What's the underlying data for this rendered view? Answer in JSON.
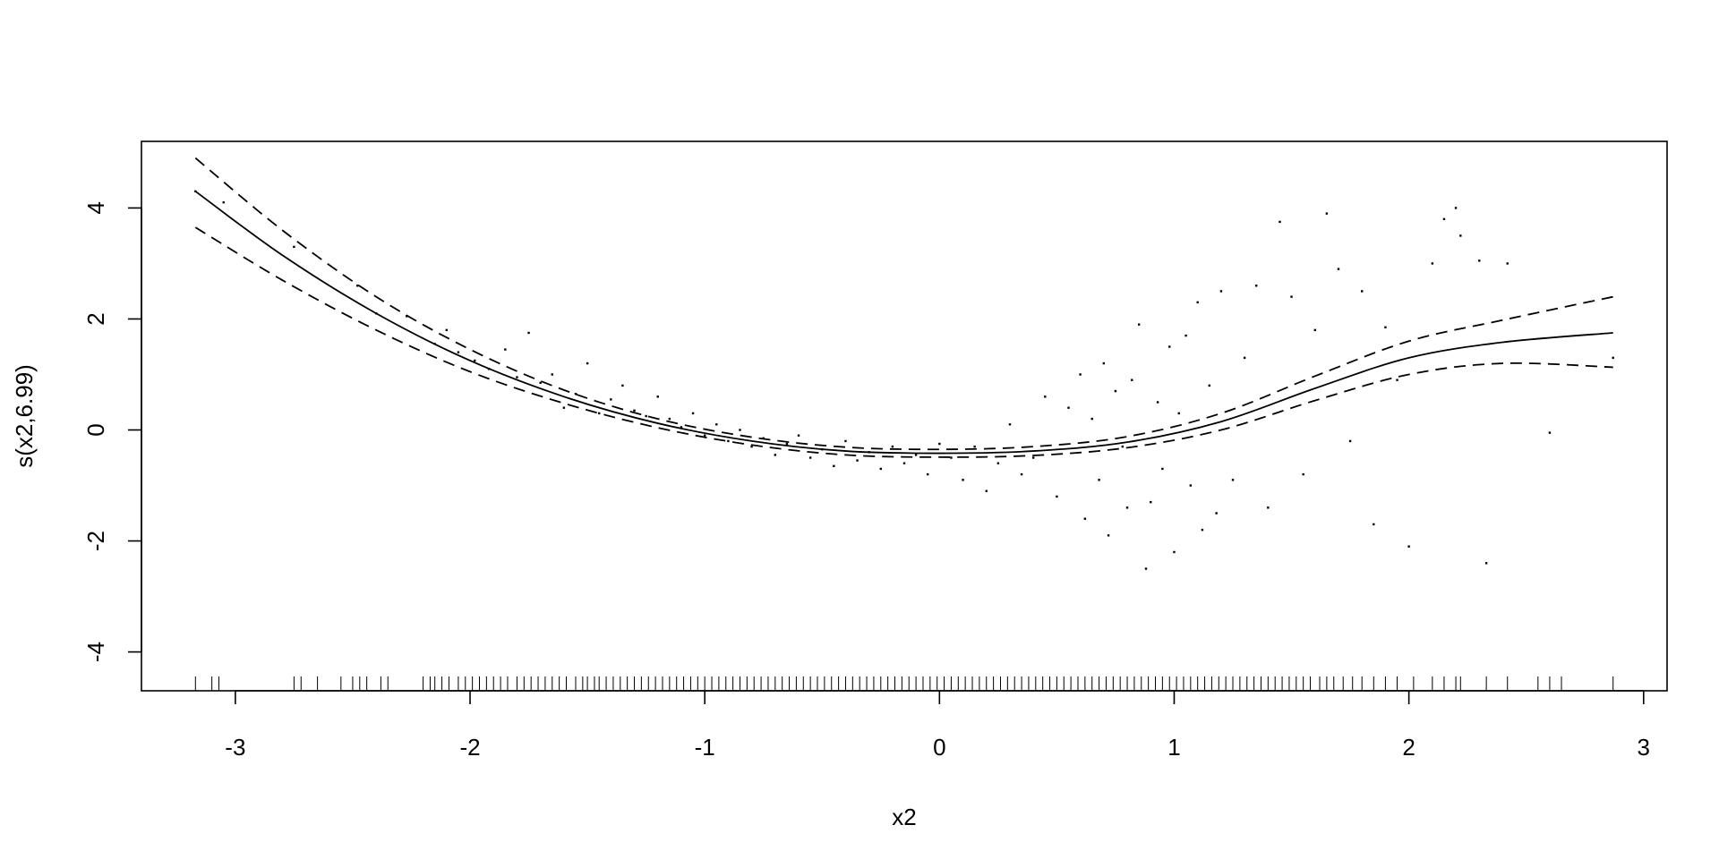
{
  "chart_data": {
    "type": "line",
    "title": "",
    "xlabel": "x2",
    "ylabel": "s(x2,6.99)",
    "xlim": [
      -3.4,
      3.1
    ],
    "ylim": [
      -4.7,
      5.2
    ],
    "xticks": [
      "-3",
      "-2",
      "-1",
      "0",
      "1",
      "2",
      "3"
    ],
    "yticks": [
      "-4",
      "-2",
      "0",
      "2",
      "4"
    ],
    "grid": false,
    "legend": "none",
    "series": [
      {
        "role": "smooth",
        "style": "solid",
        "x": [
          -3.17,
          -2.8,
          -2.4,
          -2.0,
          -1.6,
          -1.2,
          -0.8,
          -0.4,
          0.0,
          0.4,
          0.8,
          1.2,
          1.6,
          2.0,
          2.4,
          2.87
        ],
        "y": [
          4.3,
          3.15,
          2.1,
          1.25,
          0.6,
          0.12,
          -0.2,
          -0.38,
          -0.42,
          -0.38,
          -0.22,
          0.15,
          0.75,
          1.3,
          1.58,
          1.75
        ]
      },
      {
        "role": "upper band",
        "style": "dashed",
        "x": [
          -3.17,
          -2.8,
          -2.4,
          -2.0,
          -1.6,
          -1.2,
          -0.8,
          -0.4,
          0.0,
          0.4,
          0.8,
          1.2,
          1.6,
          2.0,
          2.4,
          2.87
        ],
        "y": [
          4.9,
          3.6,
          2.4,
          1.45,
          0.72,
          0.2,
          -0.13,
          -0.31,
          -0.35,
          -0.3,
          -0.12,
          0.3,
          0.97,
          1.6,
          1.98,
          2.4
        ]
      },
      {
        "role": "lower band",
        "style": "dashed",
        "x": [
          -3.17,
          -2.8,
          -2.4,
          -2.0,
          -1.6,
          -1.2,
          -0.8,
          -0.4,
          0.0,
          0.4,
          0.8,
          1.2,
          1.6,
          2.0,
          2.4,
          2.87
        ],
        "y": [
          3.65,
          2.7,
          1.8,
          1.05,
          0.48,
          0.04,
          -0.27,
          -0.45,
          -0.49,
          -0.46,
          -0.32,
          0.0,
          0.53,
          1.0,
          1.2,
          1.13
        ]
      }
    ],
    "partial_residuals": {
      "x": [
        -3.17,
        -3.05,
        -2.75,
        -2.48,
        -2.4,
        -2.27,
        -2.15,
        -2.1,
        -2.05,
        -1.98,
        -1.92,
        -1.85,
        -1.8,
        -1.75,
        -1.7,
        -1.65,
        -1.6,
        -1.55,
        -1.5,
        -1.45,
        -1.4,
        -1.35,
        -1.3,
        -1.25,
        -1.2,
        -1.15,
        -1.1,
        -1.05,
        -1.0,
        -0.95,
        -0.9,
        -0.85,
        -0.8,
        -0.75,
        -0.7,
        -0.65,
        -0.6,
        -0.55,
        -0.5,
        -0.45,
        -0.4,
        -0.35,
        -0.3,
        -0.25,
        -0.2,
        -0.15,
        -0.1,
        -0.05,
        0.0,
        0.05,
        0.1,
        0.15,
        0.2,
        0.25,
        0.3,
        0.35,
        0.4,
        0.45,
        0.5,
        0.55,
        0.6,
        0.62,
        0.65,
        0.68,
        0.7,
        0.72,
        0.75,
        0.78,
        0.8,
        0.82,
        0.85,
        0.88,
        0.9,
        0.93,
        0.95,
        0.98,
        1.0,
        1.02,
        1.05,
        1.07,
        1.1,
        1.12,
        1.15,
        1.18,
        1.2,
        1.25,
        1.3,
        1.35,
        1.4,
        1.45,
        1.5,
        1.55,
        1.6,
        1.65,
        1.7,
        1.75,
        1.8,
        1.85,
        1.9,
        1.95,
        2.0,
        2.1,
        2.15,
        2.2,
        2.22,
        2.3,
        2.33,
        2.42,
        2.6,
        2.87
      ],
      "y": [
        4.3,
        4.1,
        3.3,
        2.6,
        2.1,
        2.05,
        1.55,
        1.8,
        1.4,
        1.25,
        1.1,
        1.45,
        0.95,
        1.75,
        0.85,
        1.0,
        0.4,
        0.65,
        1.2,
        0.3,
        0.55,
        0.8,
        0.35,
        0.25,
        0.6,
        0.2,
        0.05,
        0.3,
        -0.1,
        0.1,
        -0.2,
        0.0,
        -0.3,
        -0.15,
        -0.45,
        -0.25,
        -0.1,
        -0.5,
        -0.35,
        -0.65,
        -0.2,
        -0.55,
        -0.4,
        -0.7,
        -0.3,
        -0.6,
        -0.45,
        -0.8,
        -0.25,
        -0.5,
        -0.9,
        -0.3,
        -1.1,
        -0.6,
        0.1,
        -0.8,
        -0.5,
        0.6,
        -1.2,
        0.4,
        1.0,
        -1.6,
        0.2,
        -0.9,
        1.2,
        -1.9,
        0.7,
        -0.3,
        -1.4,
        0.9,
        1.9,
        -2.5,
        -1.3,
        0.5,
        -0.7,
        1.5,
        -2.2,
        0.3,
        1.7,
        -1.0,
        2.3,
        -1.8,
        0.8,
        -1.5,
        2.5,
        -0.9,
        1.3,
        2.6,
        -1.4,
        3.75,
        2.4,
        -0.8,
        1.8,
        3.9,
        2.9,
        -0.2,
        2.5,
        -1.7,
        1.85,
        0.9,
        -2.1,
        3.0,
        3.8,
        4.0,
        3.5,
        3.05,
        -2.4,
        3.0,
        -0.05,
        1.3
      ]
    },
    "rug": {
      "x": [
        -3.17,
        -3.1,
        -3.07,
        -2.75,
        -2.72,
        -2.65,
        -2.55,
        -2.5,
        -2.47,
        -2.44,
        -2.38,
        -2.35,
        -2.2,
        -2.17,
        -2.15,
        -2.12,
        -2.09,
        -2.05,
        -2.02,
        -1.99,
        -1.96,
        -1.93,
        -1.9,
        -1.87,
        -1.84,
        -1.8,
        -1.77,
        -1.74,
        -1.71,
        -1.68,
        -1.65,
        -1.62,
        -1.59,
        -1.55,
        -1.52,
        -1.5,
        -1.47,
        -1.45,
        -1.42,
        -1.39,
        -1.36,
        -1.33,
        -1.3,
        -1.27,
        -1.24,
        -1.21,
        -1.18,
        -1.15,
        -1.12,
        -1.09,
        -1.06,
        -1.03,
        -1.0,
        -0.97,
        -0.94,
        -0.91,
        -0.88,
        -0.85,
        -0.82,
        -0.79,
        -0.76,
        -0.73,
        -0.7,
        -0.67,
        -0.64,
        -0.61,
        -0.58,
        -0.55,
        -0.52,
        -0.49,
        -0.46,
        -0.43,
        -0.4,
        -0.37,
        -0.34,
        -0.31,
        -0.28,
        -0.25,
        -0.22,
        -0.19,
        -0.16,
        -0.13,
        -0.1,
        -0.07,
        -0.04,
        -0.01,
        0.02,
        0.05,
        0.08,
        0.11,
        0.14,
        0.17,
        0.2,
        0.23,
        0.26,
        0.29,
        0.32,
        0.35,
        0.38,
        0.41,
        0.44,
        0.47,
        0.5,
        0.53,
        0.56,
        0.59,
        0.62,
        0.65,
        0.68,
        0.71,
        0.74,
        0.77,
        0.8,
        0.83,
        0.86,
        0.89,
        0.92,
        0.95,
        0.98,
        1.01,
        1.04,
        1.07,
        1.1,
        1.13,
        1.16,
        1.19,
        1.22,
        1.25,
        1.28,
        1.31,
        1.34,
        1.37,
        1.4,
        1.43,
        1.46,
        1.49,
        1.52,
        1.55,
        1.58,
        1.62,
        1.65,
        1.68,
        1.72,
        1.76,
        1.8,
        1.85,
        1.9,
        1.95,
        2.02,
        2.1,
        2.15,
        2.2,
        2.22,
        2.33,
        2.42,
        2.55,
        2.6,
        2.65,
        2.87
      ]
    }
  }
}
